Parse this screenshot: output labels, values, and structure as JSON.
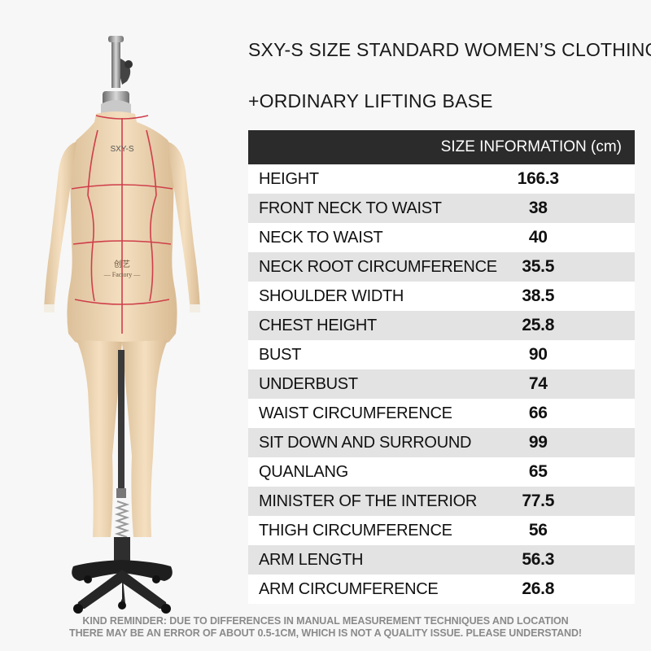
{
  "title_line_1": "SXY-S SIZE STANDARD WOMEN’S CLOTHING",
  "title_line_2": "+ORDINARY LIFTING BASE",
  "table": {
    "header": "SIZE INFORMATION (cm)",
    "rows": [
      {
        "label": "HEIGHT",
        "value": "166.3"
      },
      {
        "label": "FRONT NECK TO WAIST",
        "value": "38"
      },
      {
        "label": "NECK TO WAIST",
        "value": "40"
      },
      {
        "label": "NECK ROOT CIRCUMFERENCE",
        "value": "35.5"
      },
      {
        "label": "SHOULDER WIDTH",
        "value": "38.5"
      },
      {
        "label": "CHEST HEIGHT",
        "value": "25.8"
      },
      {
        "label": "BUST",
        "value": "90"
      },
      {
        "label": "UNDERBUST",
        "value": "74"
      },
      {
        "label": "WAIST CIRCUMFERENCE",
        "value": "66"
      },
      {
        "label": "SIT DOWN AND SURROUND",
        "value": "99"
      },
      {
        "label": "QUANLANG",
        "value": "65"
      },
      {
        "label": "MINISTER OF THE INTERIOR",
        "value": "77.5"
      },
      {
        "label": "THIGH CIRCUMFERENCE",
        "value": "56"
      },
      {
        "label": "ARM LENGTH",
        "value": "56.3"
      },
      {
        "label": "ARM CIRCUMFERENCE",
        "value": "26.8"
      }
    ]
  },
  "mannequin": {
    "chest_label": "SXY-S",
    "logo_text": "创艺",
    "logo_subtext": "— Factory —"
  },
  "reminder_line_1": "KIND REMINDER: DUE TO DIFFERENCES IN MANUAL MEASUREMENT TECHNIQUES AND LOCATION",
  "reminder_line_2": "THERE MAY BE AN ERROR OF ABOUT 0.5-1CM, WHICH IS NOT A QUALITY ISSUE. PLEASE UNDERSTAND!",
  "colors": {
    "body": "#efd7b5",
    "seam": "#cf3e4a",
    "header_bg": "#2b2b2b",
    "row_alt": "#e3e3e3"
  }
}
